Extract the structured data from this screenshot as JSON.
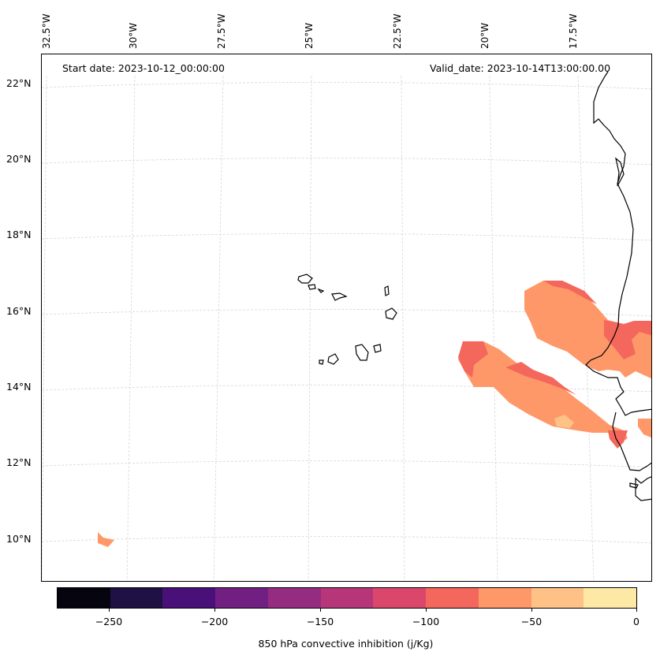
{
  "map": {
    "start_date": "Start date: 2023-10-12_00:00:00",
    "valid_date": "Valid_date: 2023-10-14T13:00:00.00",
    "lon_labels": [
      "32.5°W",
      "30°W",
      "27.5°W",
      "25°W",
      "22.5°W",
      "20°W",
      "17.5°W"
    ],
    "lat_labels": [
      "22°N",
      "20°N",
      "18°N",
      "16°N",
      "14°N",
      "12°N",
      "10°N"
    ],
    "features": [
      "Cabo Verde islands",
      "West African coastline",
      "convective inhibition field"
    ]
  },
  "colorbar": {
    "title": "850 hPa convective inhibition (j/Kg)",
    "tick_labels": [
      "−250",
      "−200",
      "−150",
      "−100",
      "−50",
      "0"
    ],
    "bin_edges": [
      -275,
      -250,
      -225,
      -200,
      -175,
      -150,
      -125,
      -100,
      -75,
      -50,
      -25,
      0
    ],
    "colors": [
      "#06040f",
      "#1f1144",
      "#4a1079",
      "#711f81",
      "#952c80",
      "#b7367a",
      "#db476a",
      "#f4675c",
      "#fe9869",
      "#fec287",
      "#fde8a5"
    ]
  }
}
